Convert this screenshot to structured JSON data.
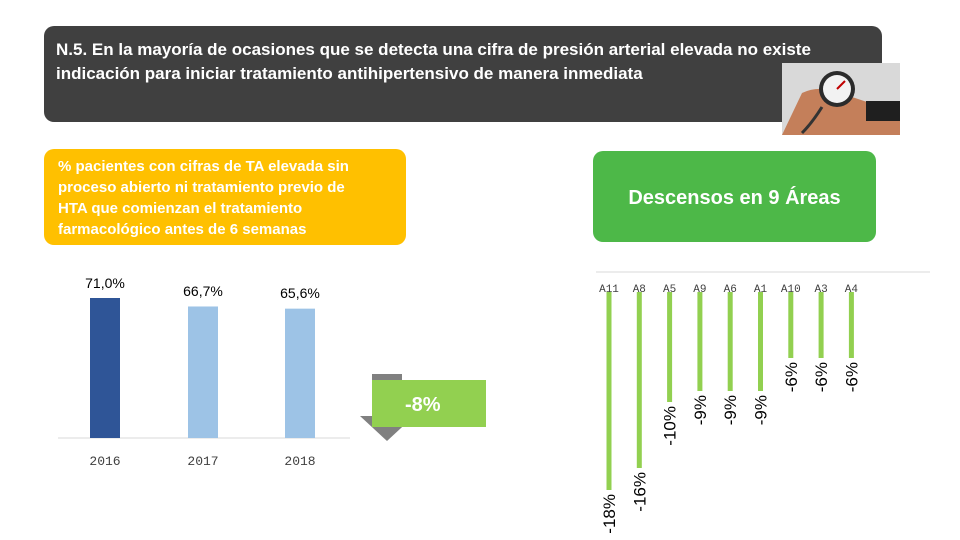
{
  "header": {
    "title": "N.5. En la mayoría de ocasiones que se detecta una cifra de presión arterial elevada no existe indicación para iniciar tratamiento antihipertensivo de manera inmediata"
  },
  "left_panel": {
    "title": "% pacientes con cifras de TA elevada sin proceso abierto ni tratamiento previo de HTA que comienzan el tratamiento farmacológico antes de 6 semanas"
  },
  "right_panel": {
    "title": "Descensos en 9 Áreas"
  },
  "change_badge": {
    "label": "-8%",
    "color": "#92d050",
    "arrow_color": "#808080",
    "icon": "down-arrow-icon"
  },
  "photo": {
    "icon": "blood-pressure-photo"
  },
  "colors": {
    "header_bg": "#404040",
    "yellow": "#ffc000",
    "green": "#4db848",
    "bar_dark": "#2f5597",
    "bar_light": "#9dc3e6",
    "bar_green": "#92d050"
  },
  "chart_data": [
    {
      "type": "bar",
      "categories": [
        "2016",
        "2017",
        "2018"
      ],
      "values": [
        71.0,
        66.7,
        65.6
      ],
      "value_labels": [
        "71,0%",
        "66,7%",
        "65,6%"
      ],
      "ylim": [
        0,
        80
      ],
      "grid": false,
      "title": "",
      "xlabel": "",
      "ylabel": ""
    },
    {
      "type": "bar",
      "categories": [
        "A11",
        "A8",
        "A5",
        "A9",
        "A6",
        "A1",
        "A10",
        "A3",
        "A4"
      ],
      "values": [
        -18,
        -16,
        -10,
        -9,
        -9,
        -9,
        -6,
        -6,
        -6
      ],
      "value_labels": [
        "-18%",
        "-16%",
        "-10%",
        "-9%",
        "-9%",
        "-9%",
        "-6%",
        "-6%",
        "-6%"
      ],
      "ylim": [
        -20,
        0
      ],
      "grid": false,
      "title": "",
      "xlabel": "",
      "ylabel": ""
    }
  ]
}
